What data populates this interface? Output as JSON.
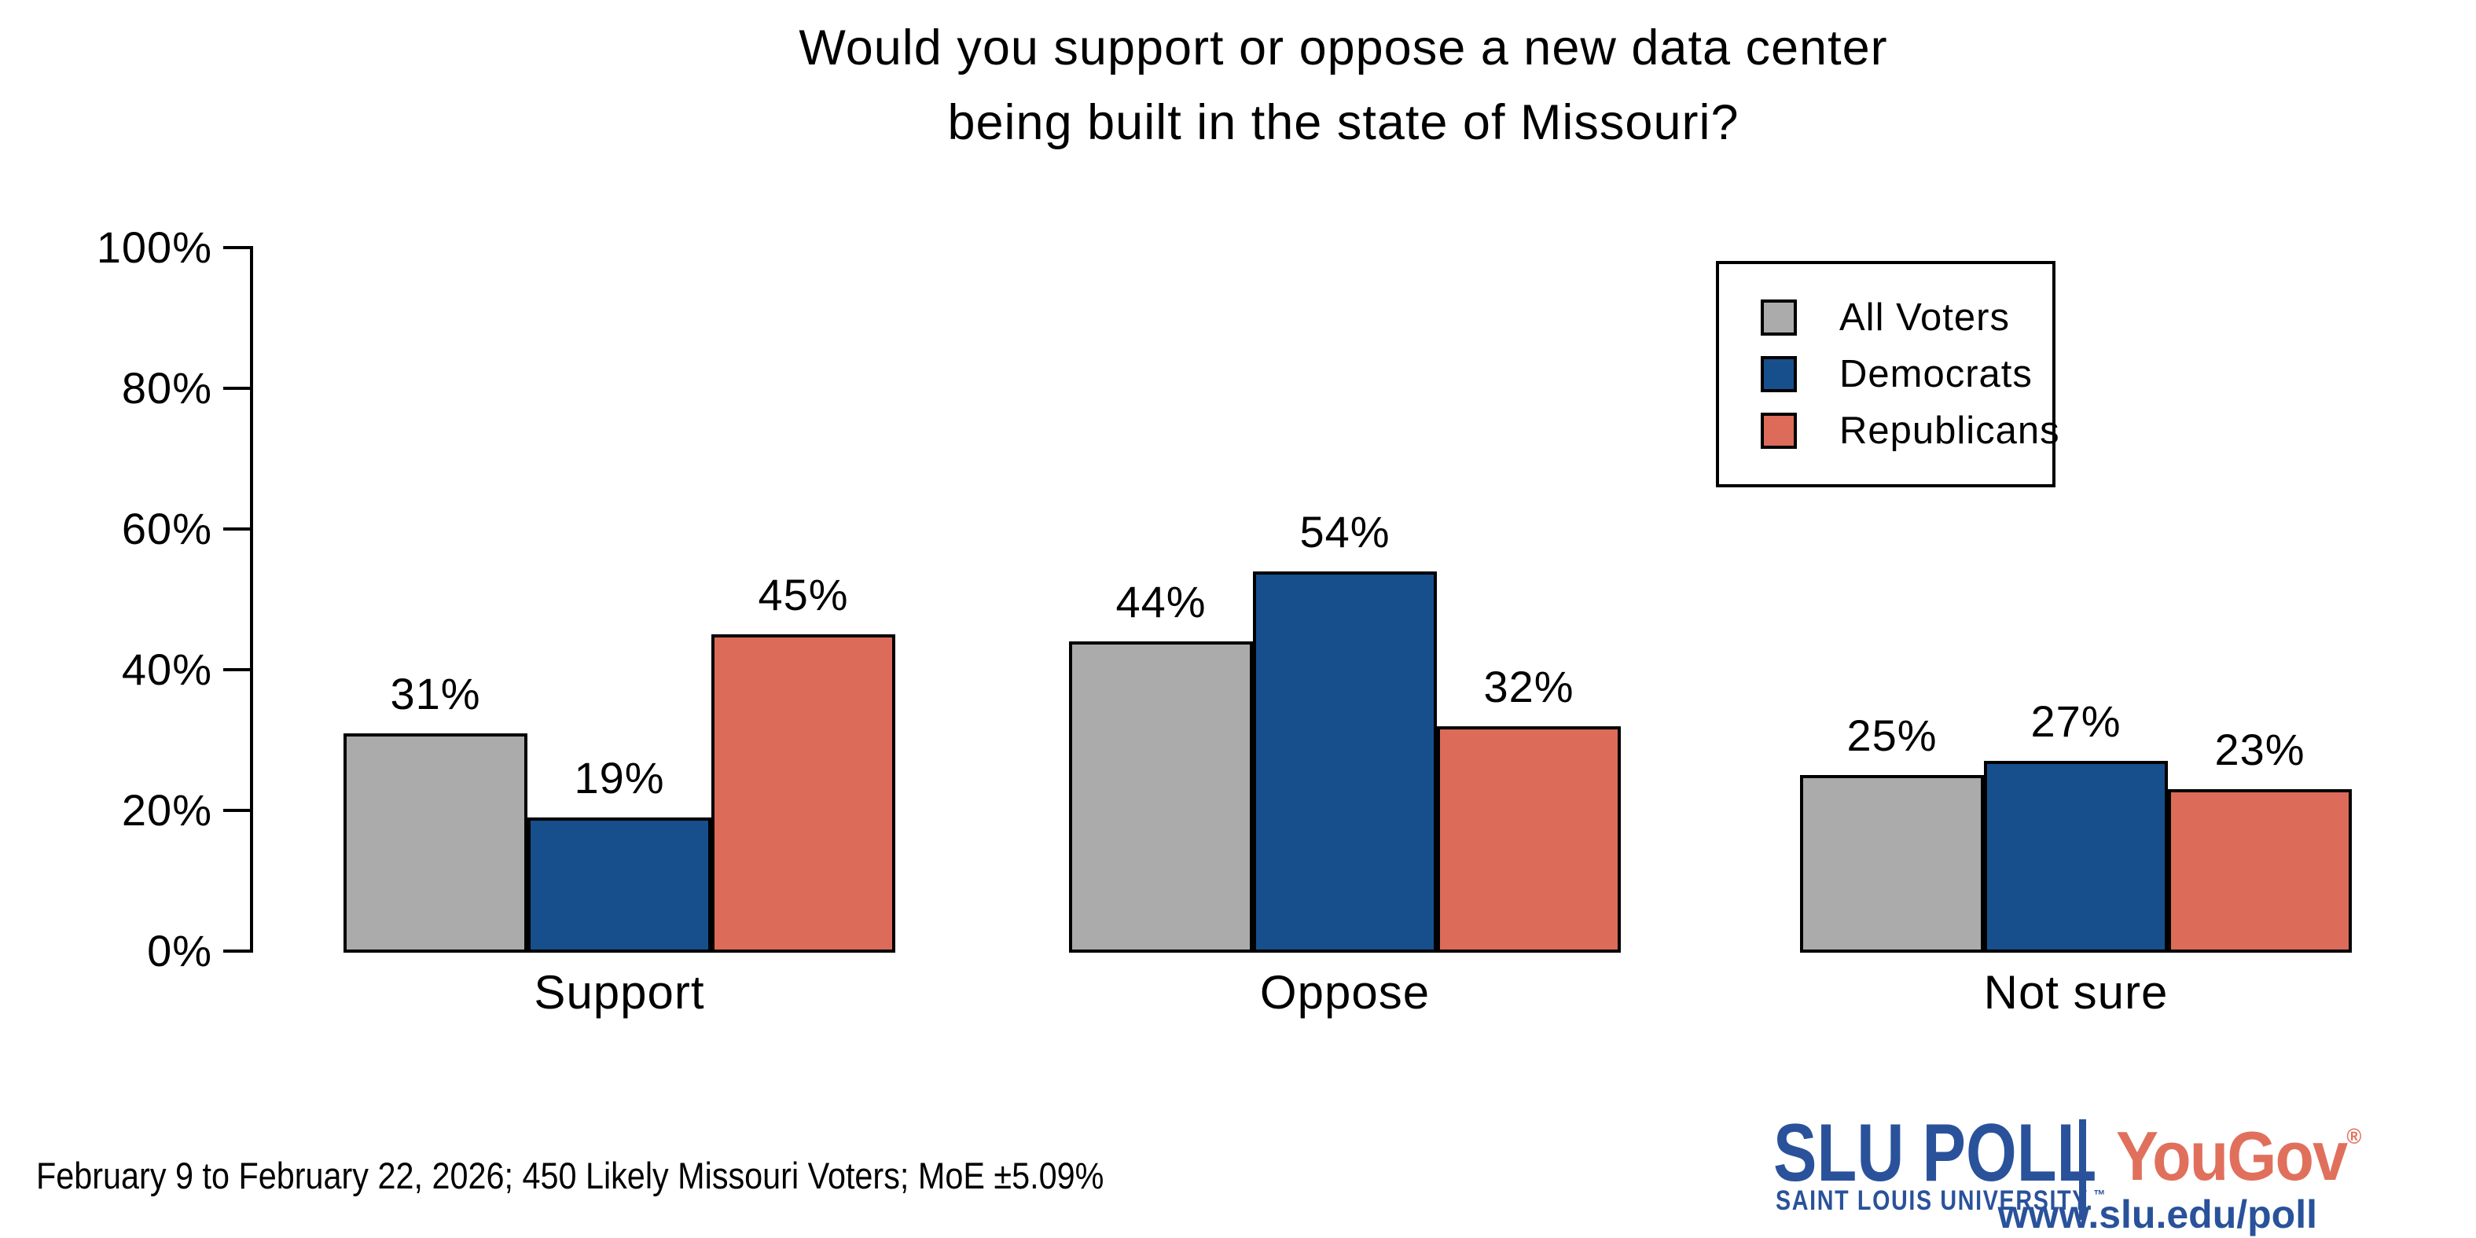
{
  "title": {
    "lines": [
      "Would you support or oppose a new data center",
      "being built in the state of Missouri?"
    ]
  },
  "chart_data": {
    "type": "bar",
    "title": "Would you support or oppose a new data center being built in the state of Missouri?",
    "categories": [
      "Support",
      "Oppose",
      "Not sure"
    ],
    "series": [
      {
        "name": "All Voters",
        "color": "#ABABAB",
        "values": [
          31,
          44,
          25
        ]
      },
      {
        "name": "Democrats",
        "color": "#164F8C",
        "values": [
          19,
          54,
          27
        ]
      },
      {
        "name": "Republicans",
        "color": "#DC6B59",
        "values": [
          45,
          32,
          23
        ]
      }
    ],
    "value_label_format": "{v}%",
    "xlabel": "",
    "ylabel": "",
    "ylim": [
      0,
      100
    ],
    "yticks": [
      {
        "label": "0%",
        "value": 0
      },
      {
        "label": "20%",
        "value": 20
      },
      {
        "label": "40%",
        "value": 40
      },
      {
        "label": "60%",
        "value": 60
      },
      {
        "label": "80%",
        "value": 80
      },
      {
        "label": "100%",
        "value": 100
      }
    ],
    "grid": false,
    "legend_position": "top-right",
    "bar_border_color": "#000000"
  },
  "footer": {
    "note": "February 9 to February 22, 2026; 450 Likely Missouri Voters; MoE ±5.09%"
  },
  "branding": {
    "slu_poll": "SLU POLL",
    "slu_subtitle": "SAINT LOUIS UNIVERSITY.",
    "slu_trademark": "™",
    "yougov": "YouGov",
    "yougov_registered": "®",
    "url": "www.slu.edu/poll",
    "slu_blue": "#2A529B",
    "yougov_coral": "#E0705C"
  }
}
